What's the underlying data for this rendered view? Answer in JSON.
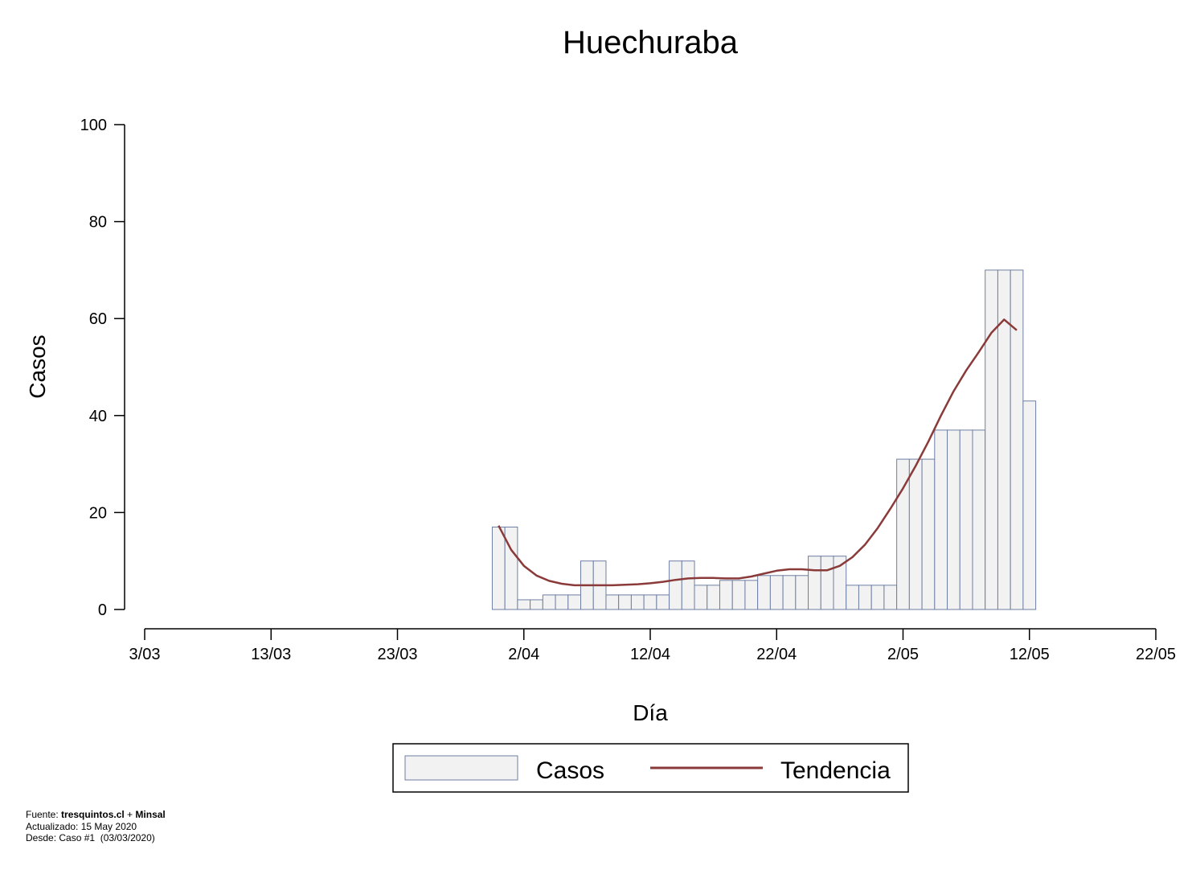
{
  "chart_data": {
    "type": "bar",
    "title": "Huechuraba",
    "xlabel": "Día",
    "ylabel": "Casos",
    "ylim": [
      0,
      100
    ],
    "yticks": [
      0,
      20,
      40,
      60,
      80,
      100
    ],
    "xlim": [
      "2020-03-03",
      "2020-05-22"
    ],
    "xtick_labels": [
      "3/03",
      "13/03",
      "23/03",
      "2/04",
      "12/04",
      "22/04",
      "2/05",
      "12/05",
      "22/05"
    ],
    "grid": false,
    "legend_position": "bottom",
    "series": [
      {
        "name": "Casos",
        "kind": "bar",
        "color": "#f2f2f2",
        "edge_color": "#6e7fa3",
        "x": [
          "2020-03-31",
          "2020-04-01",
          "2020-04-02",
          "2020-04-03",
          "2020-04-04",
          "2020-04-05",
          "2020-04-06",
          "2020-04-07",
          "2020-04-08",
          "2020-04-09",
          "2020-04-10",
          "2020-04-11",
          "2020-04-12",
          "2020-04-13",
          "2020-04-14",
          "2020-04-15",
          "2020-04-16",
          "2020-04-17",
          "2020-04-18",
          "2020-04-19",
          "2020-04-20",
          "2020-04-21",
          "2020-04-22",
          "2020-04-23",
          "2020-04-24",
          "2020-04-25",
          "2020-04-26",
          "2020-04-27",
          "2020-04-28",
          "2020-04-29",
          "2020-04-30",
          "2020-05-01",
          "2020-05-02",
          "2020-05-03",
          "2020-05-04",
          "2020-05-05",
          "2020-05-06",
          "2020-05-07",
          "2020-05-08",
          "2020-05-09",
          "2020-05-10",
          "2020-05-11",
          "2020-05-12"
        ],
        "values": [
          17,
          17,
          2,
          2,
          3,
          3,
          3,
          10,
          10,
          3,
          3,
          3,
          3,
          3,
          10,
          10,
          5,
          5,
          6,
          6,
          6,
          7,
          7,
          7,
          7,
          11,
          11,
          11,
          5,
          5,
          5,
          5,
          31,
          31,
          31,
          37,
          37,
          37,
          37,
          70,
          70,
          70,
          43
        ]
      },
      {
        "name": "Tendencia",
        "kind": "line",
        "color": "#8b3a3a",
        "x": [
          "2020-03-31",
          "2020-04-01",
          "2020-04-02",
          "2020-04-03",
          "2020-04-04",
          "2020-04-05",
          "2020-04-06",
          "2020-04-07",
          "2020-04-08",
          "2020-04-09",
          "2020-04-10",
          "2020-04-11",
          "2020-04-12",
          "2020-04-13",
          "2020-04-14",
          "2020-04-15",
          "2020-04-16",
          "2020-04-17",
          "2020-04-18",
          "2020-04-19",
          "2020-04-20",
          "2020-04-21",
          "2020-04-22",
          "2020-04-23",
          "2020-04-24",
          "2020-04-25",
          "2020-04-26",
          "2020-04-27",
          "2020-04-28",
          "2020-04-29",
          "2020-04-30",
          "2020-05-01",
          "2020-05-02",
          "2020-05-03",
          "2020-05-04",
          "2020-05-05",
          "2020-05-06",
          "2020-05-07",
          "2020-05-08",
          "2020-05-09",
          "2020-05-10",
          "2020-05-11",
          "2020-05-12"
        ],
        "values": [
          17.3,
          12.3,
          9.0,
          7.0,
          5.9,
          5.3,
          5.0,
          5.0,
          5.0,
          5.0,
          5.1,
          5.2,
          5.4,
          5.7,
          6.1,
          6.4,
          6.5,
          6.5,
          6.4,
          6.4,
          6.8,
          7.4,
          8.0,
          8.3,
          8.3,
          8.1,
          8.1,
          9.0,
          10.8,
          13.4,
          16.8,
          20.8,
          25.0,
          29.6,
          34.6,
          40.0,
          45.0,
          49.3,
          53.1,
          57.1,
          59.8,
          57.6,
          null
        ]
      }
    ]
  },
  "legend": {
    "items": [
      {
        "label": "Casos"
      },
      {
        "label": "Tendencia"
      }
    ]
  },
  "footer": {
    "source_prefix": "Fuente: ",
    "source_site": "tresquintos.cl",
    "source_join": " + ",
    "source_org": "Minsal",
    "updated": "Actualizado: 15 May 2020",
    "since": "Desde: Caso #1  (03/03/2020)"
  }
}
